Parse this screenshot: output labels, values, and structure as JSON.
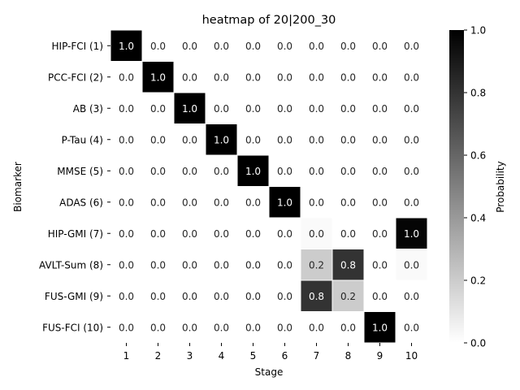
{
  "chart_data": {
    "type": "heatmap",
    "title": "heatmap of 20|200_30",
    "xlabel": "Stage",
    "ylabel": "Biomarker",
    "x_categories": [
      "1",
      "2",
      "3",
      "4",
      "5",
      "6",
      "7",
      "8",
      "9",
      "10"
    ],
    "y_categories": [
      "HIP-FCI (1)",
      "PCC-FCI (2)",
      "AB (3)",
      "P-Tau (4)",
      "MMSE (5)",
      "ADAS (6)",
      "HIP-GMI (7)",
      "AVLT-Sum (8)",
      "FUS-GMI (9)",
      "FUS-FCI (10)"
    ],
    "values": [
      [
        1.0,
        0.0,
        0.0,
        0.0,
        0.0,
        0.0,
        0.0,
        0.0,
        0.0,
        0.0
      ],
      [
        0.0,
        1.0,
        0.0,
        0.0,
        0.0,
        0.0,
        0.0,
        0.0,
        0.0,
        0.0
      ],
      [
        0.0,
        0.0,
        1.0,
        0.0,
        0.0,
        0.0,
        0.0,
        0.0,
        0.0,
        0.0
      ],
      [
        0.0,
        0.0,
        0.0,
        1.0,
        0.0,
        0.0,
        0.0,
        0.0,
        0.0,
        0.0
      ],
      [
        0.0,
        0.0,
        0.0,
        0.0,
        1.0,
        0.0,
        0.0,
        0.0,
        0.0,
        0.0
      ],
      [
        0.0,
        0.0,
        0.0,
        0.0,
        0.0,
        1.0,
        0.0,
        0.0,
        0.0,
        0.0
      ],
      [
        0.0,
        0.0,
        0.0,
        0.0,
        0.0,
        0.0,
        0.02,
        0.0,
        0.0,
        0.98
      ],
      [
        0.0,
        0.0,
        0.0,
        0.0,
        0.0,
        0.0,
        0.2,
        0.8,
        0.0,
        0.02
      ],
      [
        0.0,
        0.0,
        0.0,
        0.0,
        0.0,
        0.0,
        0.8,
        0.2,
        0.0,
        0.0
      ],
      [
        0.0,
        0.0,
        0.0,
        0.0,
        0.0,
        0.0,
        0.0,
        0.0,
        1.0,
        0.0
      ]
    ],
    "colorbar": {
      "label": "Probability",
      "range": [
        0,
        1
      ],
      "ticks": [
        "0.0",
        "0.2",
        "0.4",
        "0.6",
        "0.8",
        "1.0"
      ],
      "colormap": "white-to-black"
    },
    "cell_label_decimals": 1,
    "grid": false
  }
}
